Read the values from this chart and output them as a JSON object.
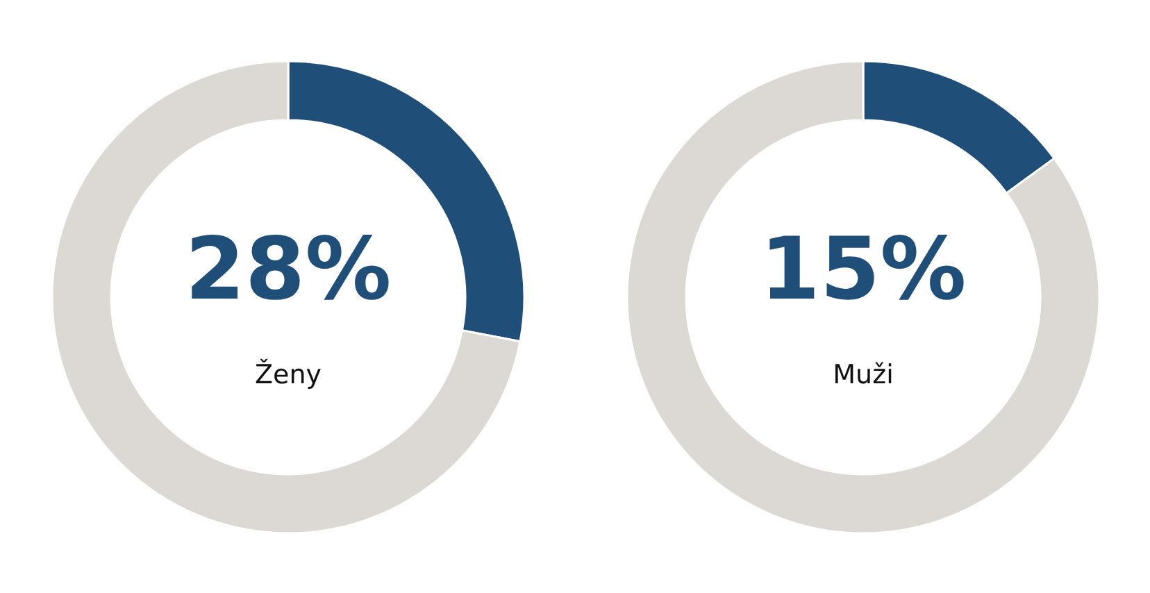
{
  "chart_data": [
    {
      "type": "donut",
      "title": "Ženy",
      "categories": [
        null,
        null
      ],
      "values": [
        28,
        72
      ],
      "colors": [
        "#1f4e79",
        "#dcd9d5"
      ],
      "value_labels": [
        "28%",
        null
      ]
    },
    {
      "type": "donut",
      "title": "Muži",
      "categories": [
        null,
        null
      ],
      "values": [
        15,
        85
      ],
      "colors": [
        "#1f4e79",
        "#dcd9d5"
      ],
      "value_labels": [
        "15%",
        null
      ]
    }
  ]
}
